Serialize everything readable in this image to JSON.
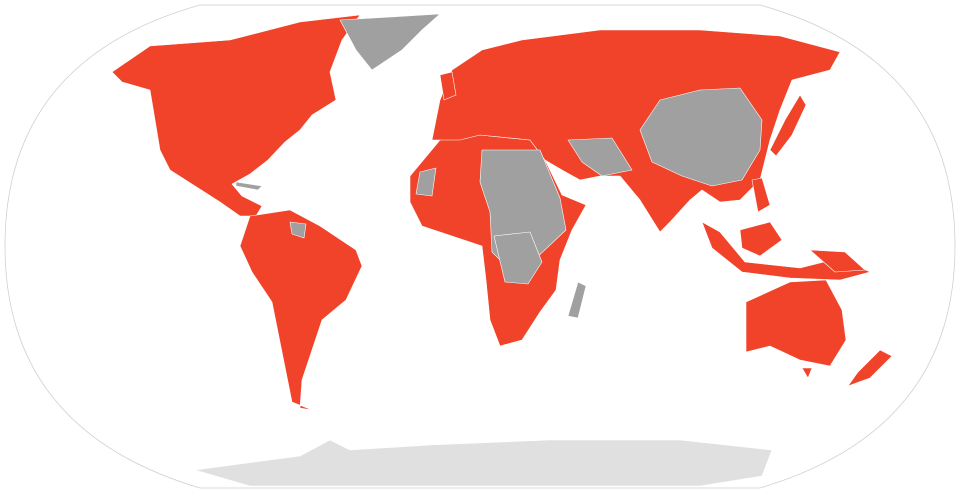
{
  "map": {
    "projection": "robinson",
    "colors": {
      "highlighted": "#f0432a",
      "not_highlighted": "#a0a0a0",
      "antarctica": "#e0e0e0",
      "frame": "#d0d0d0",
      "ocean": "#ffffff"
    }
  }
}
